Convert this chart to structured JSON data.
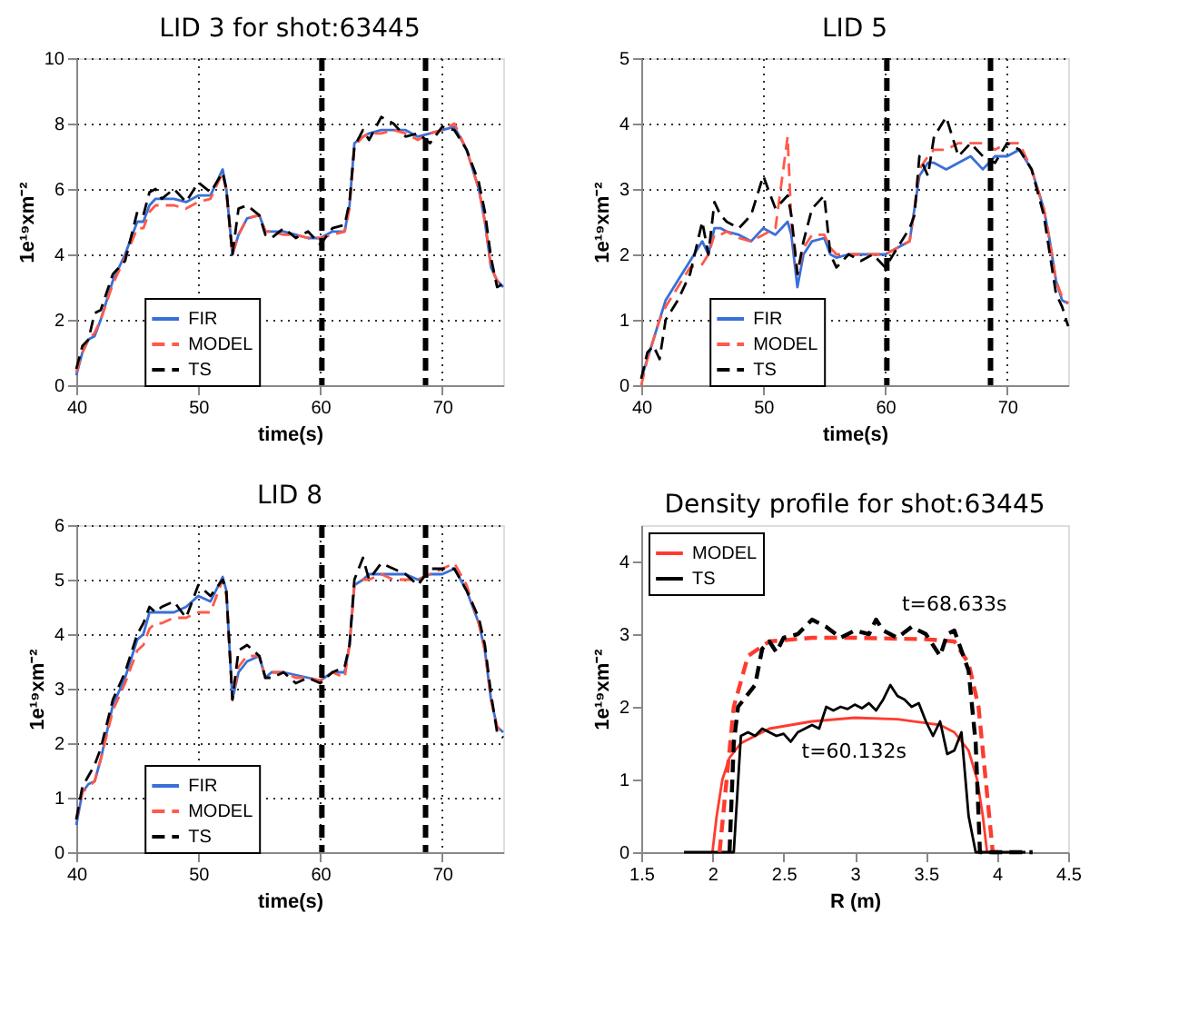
{
  "chart_data": [
    {
      "type": "line",
      "title": "LID 3 for shot:63445",
      "xlabel": "time(s)",
      "ylabel": "1e¹⁹xm⁻²",
      "xlim": [
        40,
        75
      ],
      "xticks": [
        40,
        50,
        60,
        70
      ],
      "ylim": [
        0,
        10
      ],
      "yticks": [
        0,
        2,
        4,
        6,
        8,
        10
      ],
      "grid": true,
      "legend": "bottom left",
      "x": [
        40,
        40.5,
        41,
        41.5,
        42,
        43,
        44,
        45,
        45.5,
        46,
        46.5,
        47,
        48,
        49,
        50,
        51,
        52,
        52.3,
        52.8,
        53.3,
        54,
        55,
        55.5,
        56,
        57,
        58,
        59,
        60,
        61,
        62,
        62.4,
        62.8,
        63.5,
        64,
        65,
        66,
        67,
        68,
        69,
        70,
        71,
        72,
        73,
        73.5,
        74,
        74.5,
        75
      ],
      "series": [
        {
          "name": "FIR",
          "color": "#3a6fd8",
          "line_style": "solid",
          "values": [
            0.3,
            1.0,
            1.4,
            1.5,
            2.0,
            3.2,
            4.0,
            5.0,
            5.0,
            5.5,
            5.7,
            5.7,
            5.7,
            5.6,
            5.8,
            5.8,
            6.6,
            6.0,
            4.0,
            4.6,
            5.1,
            5.2,
            4.7,
            4.7,
            4.7,
            4.6,
            4.5,
            4.5,
            4.7,
            4.7,
            5.5,
            7.4,
            7.6,
            7.7,
            7.8,
            7.8,
            7.8,
            7.6,
            7.7,
            7.8,
            7.9,
            7.2,
            6.0,
            5.0,
            3.6,
            3.2,
            3.0
          ]
        },
        {
          "name": "MODEL",
          "color": "#ff5a4a",
          "line_style": "dashed",
          "values": [
            0.4,
            1.0,
            1.4,
            1.6,
            2.0,
            3.1,
            3.9,
            4.8,
            4.8,
            5.3,
            5.5,
            5.5,
            5.5,
            5.4,
            5.6,
            5.7,
            6.5,
            5.9,
            4.0,
            4.6,
            5.1,
            5.2,
            4.7,
            4.7,
            4.6,
            4.6,
            4.5,
            4.5,
            4.6,
            4.7,
            5.4,
            7.3,
            7.6,
            7.7,
            7.7,
            7.8,
            7.7,
            7.5,
            7.7,
            7.8,
            8.0,
            7.2,
            6.0,
            5.0,
            3.6,
            3.2,
            3.0
          ]
        },
        {
          "name": "TS",
          "color": "#000000",
          "line_style": "dashed",
          "values": [
            0.5,
            1.2,
            1.4,
            2.2,
            2.3,
            3.4,
            3.8,
            5.3,
            5.2,
            5.9,
            6.0,
            5.7,
            6.0,
            5.6,
            6.2,
            5.9,
            6.5,
            6.0,
            4.0,
            5.4,
            5.5,
            5.2,
            4.6,
            4.5,
            4.8,
            4.5,
            4.7,
            4.3,
            4.8,
            4.9,
            5.6,
            7.3,
            7.8,
            7.5,
            8.2,
            8.0,
            7.6,
            7.7,
            7.4,
            7.9,
            7.8,
            7.2,
            6.2,
            5.3,
            3.9,
            3.0,
            3.1
          ]
        }
      ],
      "ref_lines": [
        {
          "axis": "x",
          "value": 60.132,
          "color": "#000000",
          "line_style": "dashed"
        },
        {
          "axis": "x",
          "value": 68.633,
          "color": "#000000",
          "line_style": "dashed"
        }
      ]
    },
    {
      "type": "line",
      "title": "LID 5",
      "xlabel": "time(s)",
      "ylabel": "1e¹⁹xm⁻²",
      "xlim": [
        40,
        75
      ],
      "xticks": [
        40,
        50,
        60,
        70
      ],
      "ylim": [
        0,
        5
      ],
      "yticks": [
        0,
        1,
        2,
        3,
        4,
        5
      ],
      "grid": true,
      "legend": "bottom left",
      "x": [
        40,
        40.5,
        41,
        41.5,
        42,
        43,
        44,
        45,
        45.5,
        46,
        46.5,
        47,
        48,
        49,
        50,
        51,
        52,
        52.3,
        52.8,
        53.3,
        54,
        55,
        55.5,
        56,
        57,
        58,
        59,
        60,
        61,
        62,
        62.4,
        62.8,
        63.5,
        64,
        65,
        66,
        67,
        68,
        69,
        70,
        71,
        72,
        73,
        73.5,
        74,
        74.5,
        75
      ],
      "series": [
        {
          "name": "FIR",
          "color": "#3a6fd8",
          "line_style": "solid",
          "values": [
            0.1,
            0.4,
            0.7,
            1.0,
            1.3,
            1.6,
            1.9,
            2.2,
            2.0,
            2.4,
            2.4,
            2.35,
            2.3,
            2.2,
            2.4,
            2.3,
            2.5,
            2.3,
            1.5,
            2.0,
            2.2,
            2.25,
            2.0,
            1.95,
            2.0,
            2.0,
            2.0,
            2.0,
            2.1,
            2.2,
            2.7,
            3.2,
            3.4,
            3.4,
            3.3,
            3.4,
            3.5,
            3.3,
            3.5,
            3.5,
            3.6,
            3.3,
            2.7,
            2.2,
            1.6,
            1.3,
            1.25
          ]
        },
        {
          "name": "MODEL",
          "color": "#ff5a4a",
          "line_style": "dashed",
          "values": [
            0.0,
            0.4,
            0.7,
            1.0,
            1.2,
            1.5,
            1.8,
            1.85,
            2.0,
            2.3,
            2.3,
            2.35,
            2.25,
            2.2,
            2.3,
            2.4,
            3.8,
            2.5,
            1.7,
            2.1,
            2.3,
            2.3,
            2.1,
            2.0,
            2.0,
            2.0,
            2.0,
            2.0,
            2.1,
            2.2,
            2.7,
            3.3,
            3.5,
            3.6,
            3.6,
            3.7,
            3.7,
            3.7,
            3.6,
            3.7,
            3.7,
            3.3,
            2.7,
            2.2,
            1.6,
            1.35,
            1.25
          ]
        },
        {
          "name": "TS",
          "color": "#000000",
          "line_style": "dashed",
          "values": [
            0.1,
            0.5,
            0.6,
            0.4,
            1.0,
            1.3,
            1.7,
            2.5,
            2.0,
            2.8,
            2.6,
            2.5,
            2.4,
            2.6,
            3.2,
            2.7,
            2.9,
            2.6,
            1.7,
            2.2,
            2.7,
            2.9,
            2.0,
            1.8,
            2.0,
            1.9,
            2.0,
            1.8,
            2.1,
            2.4,
            2.6,
            3.5,
            3.2,
            3.8,
            4.1,
            3.5,
            3.7,
            3.5,
            3.4,
            3.7,
            3.6,
            3.3,
            2.6,
            2.0,
            1.4,
            1.2,
            0.9
          ]
        }
      ],
      "ref_lines": [
        {
          "axis": "x",
          "value": 60.132,
          "color": "#000000",
          "line_style": "dashed"
        },
        {
          "axis": "x",
          "value": 68.633,
          "color": "#000000",
          "line_style": "dashed"
        }
      ]
    },
    {
      "type": "line",
      "title": "LID 8",
      "xlabel": "time(s)",
      "ylabel": "1e¹⁹xm⁻²",
      "xlim": [
        40,
        75
      ],
      "xticks": [
        40,
        50,
        60,
        70
      ],
      "ylim": [
        0,
        6
      ],
      "yticks": [
        0,
        1,
        2,
        3,
        4,
        5,
        6
      ],
      "grid": true,
      "legend": "bottom left",
      "x": [
        40,
        40.5,
        41,
        41.5,
        42,
        43,
        44,
        45,
        45.5,
        46,
        46.5,
        47,
        48,
        49,
        50,
        51,
        52,
        52.3,
        52.8,
        53.3,
        54,
        55,
        55.5,
        56,
        57,
        58,
        59,
        60,
        61,
        62,
        62.4,
        62.8,
        63.5,
        64,
        65,
        66,
        67,
        68,
        69,
        70,
        71,
        72,
        73,
        73.5,
        74,
        74.5,
        75
      ],
      "series": [
        {
          "name": "FIR",
          "color": "#3a6fd8",
          "line_style": "solid",
          "values": [
            0.5,
            1.1,
            1.25,
            1.3,
            1.7,
            2.7,
            3.2,
            3.9,
            4.0,
            4.4,
            4.4,
            4.4,
            4.4,
            4.5,
            4.7,
            4.6,
            5.05,
            4.8,
            2.8,
            3.3,
            3.5,
            3.6,
            3.2,
            3.3,
            3.3,
            3.25,
            3.2,
            3.15,
            3.3,
            3.3,
            3.8,
            4.9,
            5.0,
            5.1,
            5.1,
            5.1,
            5.1,
            5.0,
            5.1,
            5.1,
            5.2,
            4.8,
            4.2,
            3.7,
            2.8,
            2.3,
            2.2
          ]
        },
        {
          "name": "MODEL",
          "color": "#ff5a4a",
          "line_style": "dashed",
          "values": [
            0.6,
            1.1,
            1.2,
            1.3,
            1.7,
            2.6,
            3.1,
            3.7,
            3.8,
            4.1,
            4.2,
            4.2,
            4.3,
            4.3,
            4.4,
            4.4,
            5.0,
            4.7,
            2.8,
            3.4,
            3.6,
            3.6,
            3.2,
            3.3,
            3.3,
            3.2,
            3.2,
            3.15,
            3.3,
            3.2,
            3.8,
            4.9,
            5.0,
            5.0,
            5.1,
            5.0,
            5.0,
            5.0,
            5.1,
            5.2,
            5.3,
            4.9,
            4.2,
            3.7,
            2.8,
            2.3,
            2.2
          ]
        },
        {
          "name": "TS",
          "color": "#000000",
          "line_style": "dashed",
          "values": [
            0.6,
            1.2,
            1.4,
            1.6,
            1.9,
            2.8,
            3.3,
            4.0,
            4.2,
            4.5,
            4.4,
            4.5,
            4.6,
            4.3,
            4.9,
            4.7,
            5.0,
            4.8,
            2.8,
            3.7,
            3.8,
            3.6,
            3.2,
            3.2,
            3.3,
            3.1,
            3.2,
            3.1,
            3.3,
            3.4,
            3.8,
            5.0,
            5.4,
            5.0,
            5.3,
            5.2,
            5.1,
            4.9,
            5.2,
            5.2,
            5.2,
            4.8,
            4.3,
            3.8,
            2.9,
            2.2,
            2.1
          ]
        }
      ],
      "ref_lines": [
        {
          "axis": "x",
          "value": 60.132,
          "color": "#000000",
          "line_style": "dashed"
        },
        {
          "axis": "x",
          "value": 68.633,
          "color": "#000000",
          "line_style": "dashed"
        }
      ]
    },
    {
      "type": "line",
      "title": "Density profile for shot:63445",
      "xlabel": "R (m)",
      "ylabel": "1e¹⁹xm⁻²",
      "xlim": [
        1.5,
        4.5
      ],
      "xticks": [
        1.5,
        2,
        2.5,
        3,
        3.5,
        4,
        4.5
      ],
      "ylim": [
        0,
        4.5
      ],
      "yticks": [
        0,
        1,
        2,
        3,
        4
      ],
      "legend": "top left",
      "series": [
        {
          "name": "MODEL",
          "color": "#ff3b2f",
          "line_style": "solid",
          "x": [
            2.0,
            2.03,
            2.07,
            2.12,
            2.2,
            2.4,
            2.7,
            3.0,
            3.3,
            3.6,
            3.7,
            3.8,
            3.86,
            3.9,
            3.93
          ],
          "values": [
            0,
            0.5,
            1.0,
            1.3,
            1.5,
            1.7,
            1.8,
            1.85,
            1.83,
            1.75,
            1.65,
            1.4,
            1.0,
            0.5,
            0
          ]
        },
        {
          "name": "TS",
          "color": "#000000",
          "line_style": "solid",
          "x": [
            1.8,
            2.15,
            2.2,
            2.25,
            2.3,
            2.35,
            2.4,
            2.45,
            2.5,
            2.55,
            2.6,
            2.7,
            2.75,
            2.8,
            2.85,
            2.9,
            2.95,
            3.0,
            3.05,
            3.1,
            3.15,
            3.2,
            3.25,
            3.3,
            3.35,
            3.4,
            3.45,
            3.5,
            3.55,
            3.6,
            3.65,
            3.7,
            3.75,
            3.8,
            3.85,
            4.2
          ],
          "values": [
            0,
            0,
            1.6,
            1.65,
            1.6,
            1.7,
            1.65,
            1.6,
            1.63,
            1.52,
            1.65,
            1.75,
            1.7,
            2.0,
            1.95,
            2.0,
            1.97,
            2.03,
            1.98,
            2.05,
            1.95,
            2.1,
            2.3,
            2.15,
            2.1,
            2.0,
            2.05,
            1.8,
            1.6,
            1.8,
            1.35,
            1.4,
            1.65,
            0.5,
            0,
            0
          ]
        },
        {
          "color": "#ff3b2f",
          "line_style": "dashed",
          "x": [
            2.05,
            2.1,
            2.15,
            2.25,
            2.4,
            2.7,
            3.0,
            3.5,
            3.7,
            3.8,
            3.87,
            3.92,
            3.97,
            4.05
          ],
          "values": [
            0,
            1.0,
            2.0,
            2.7,
            2.9,
            2.95,
            2.95,
            2.93,
            2.9,
            2.6,
            2.0,
            1.0,
            0,
            0
          ]
        },
        {
          "color": "#000000",
          "line_style": "dashed",
          "x": [
            2.12,
            2.15,
            2.18,
            2.3,
            2.35,
            2.4,
            2.45,
            2.5,
            2.6,
            2.7,
            2.8,
            2.9,
            3.0,
            3.1,
            3.15,
            3.2,
            3.3,
            3.4,
            3.5,
            3.6,
            3.65,
            3.7,
            3.8,
            3.85,
            3.88,
            4.25
          ],
          "values": [
            0,
            1.5,
            2.0,
            2.3,
            2.8,
            2.9,
            2.75,
            2.95,
            3.0,
            3.2,
            3.1,
            2.95,
            3.05,
            3.0,
            3.2,
            3.05,
            2.95,
            3.1,
            3.0,
            2.7,
            3.0,
            3.05,
            2.5,
            1.5,
            0,
            0
          ]
        }
      ],
      "annotations": [
        {
          "text": "t=68.633s",
          "x": 3.7,
          "y": 3.05
        },
        {
          "text": "t=60.132s",
          "x": 3.3,
          "y": 1.83
        }
      ]
    }
  ]
}
